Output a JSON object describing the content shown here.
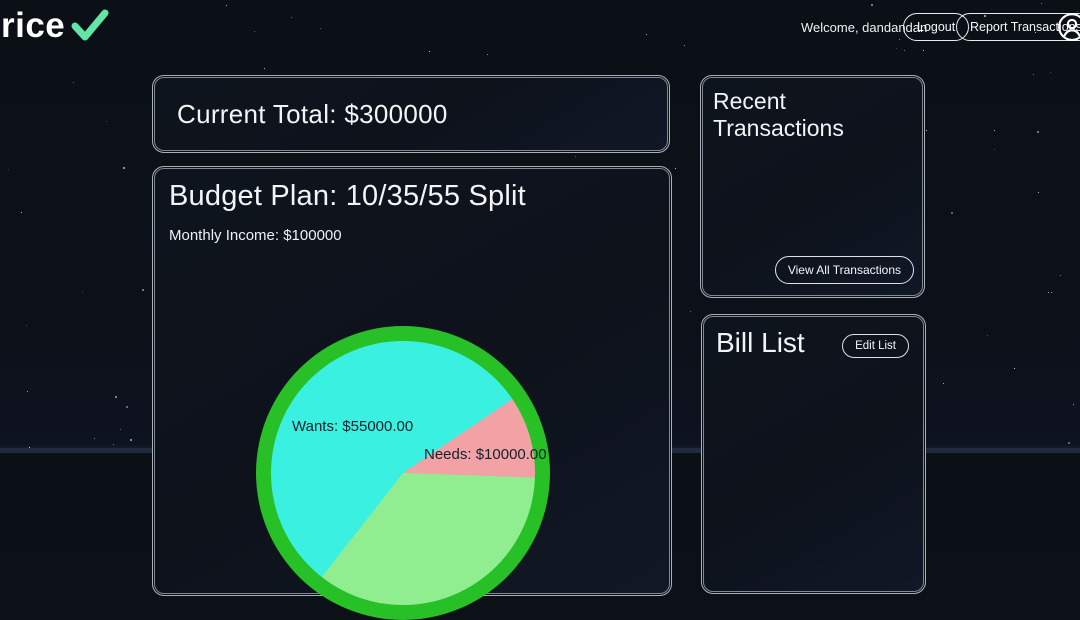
{
  "header": {
    "logo_text": "rice",
    "logo_check_color": "#63e6a5",
    "welcome_text": "Welcome, dandandan",
    "logout_label": "Logout",
    "report_label": "Report Transactions"
  },
  "current_total": {
    "title": "Current Total: $300000"
  },
  "budget": {
    "title": "Budget Plan: 10/35/55 Split",
    "income_text": "Monthly Income: $100000"
  },
  "chart_data": {
    "type": "pie",
    "title": "Budget Plan: 10/35/55 Split",
    "split_percentages": [
      10,
      35,
      55
    ],
    "slices": [
      {
        "label": "Wants",
        "value": 55000.0,
        "percent": 55,
        "color": "#3af0e1"
      },
      {
        "label": "Needs",
        "value": 10000.0,
        "percent": 10,
        "color": "#f2a2a4"
      }
    ],
    "visible_labels": {
      "wants": "Wants: $55000.00",
      "needs": "Needs: $10000.00"
    },
    "ring_color": "#27c127",
    "layout": "pie partially visible, bottom clipped by viewport"
  },
  "recent_transactions": {
    "title": "Recent Transactions",
    "view_all_label": "View All Transactions"
  },
  "bill_list": {
    "title": "Bill List",
    "edit_label": "Edit List"
  }
}
